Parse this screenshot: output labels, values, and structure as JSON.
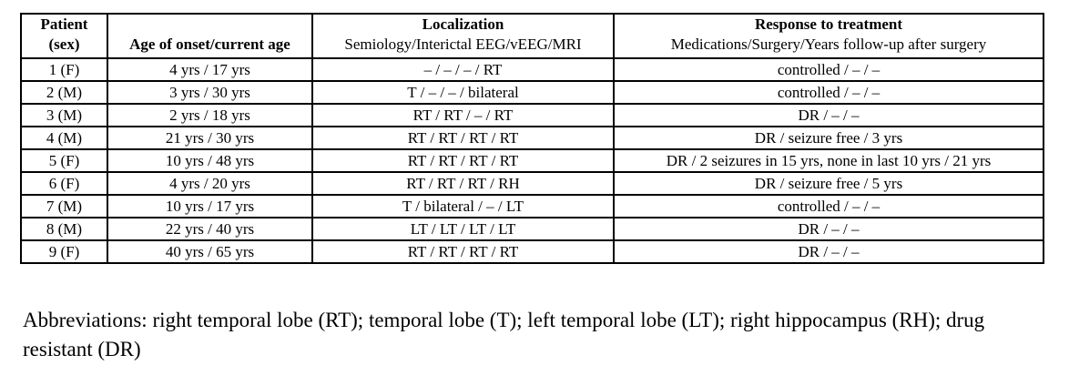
{
  "table": {
    "headers": {
      "patient_line1": "Patient",
      "patient_line2": "(sex)",
      "age": "Age of onset/current age",
      "localization_line1": "Localization",
      "localization_line2": "Semiology/Interictal EEG/vEEG/MRI",
      "response_line1": "Response to treatment",
      "response_line2": "Medications/Surgery/Years follow-up after surgery"
    },
    "rows": [
      {
        "patient": "1 (F)",
        "age": "4  yrs / 17 yrs",
        "localization": "– / – / – / RT",
        "response": "controlled / – / –"
      },
      {
        "patient": "2 (M)",
        "age": "3 yrs / 30 yrs",
        "localization": "T / – / – / bilateral",
        "response": "controlled / – / –"
      },
      {
        "patient": "3 (M)",
        "age": "2 yrs / 18 yrs",
        "localization": "RT / RT / – / RT",
        "response": "DR / – / –"
      },
      {
        "patient": "4 (M)",
        "age": "21 yrs / 30 yrs",
        "localization": "RT / RT / RT / RT",
        "response": "DR / seizure free / 3 yrs"
      },
      {
        "patient": "5 (F)",
        "age": "10 yrs / 48 yrs",
        "localization": "RT / RT / RT / RT",
        "response": "DR / 2 seizures in 15 yrs, none in last 10 yrs / 21 yrs"
      },
      {
        "patient": "6 (F)",
        "age": "4 yrs / 20 yrs",
        "localization": "RT / RT / RT / RH",
        "response": "DR / seizure free / 5 yrs"
      },
      {
        "patient": "7 (M)",
        "age": "10 yrs / 17 yrs",
        "localization": "T / bilateral / – / LT",
        "response": "controlled / – / –"
      },
      {
        "patient": "8 (M)",
        "age": "22 yrs / 40 yrs",
        "localization": "LT / LT / LT / LT",
        "response": "DR / – / –"
      },
      {
        "patient": "9 (F)",
        "age": "40 yrs / 65 yrs",
        "localization": "RT / RT / RT / RT",
        "response": "DR / – / –"
      }
    ],
    "column_keys": [
      "patient",
      "age",
      "localization",
      "response"
    ]
  },
  "abbreviations": "Abbreviations: right temporal lobe (RT); temporal lobe (T); left temporal lobe (LT); right hippocampus (RH); drug resistant (DR)",
  "colors": {
    "text": "#000000",
    "background": "#ffffff",
    "border": "#000000"
  }
}
